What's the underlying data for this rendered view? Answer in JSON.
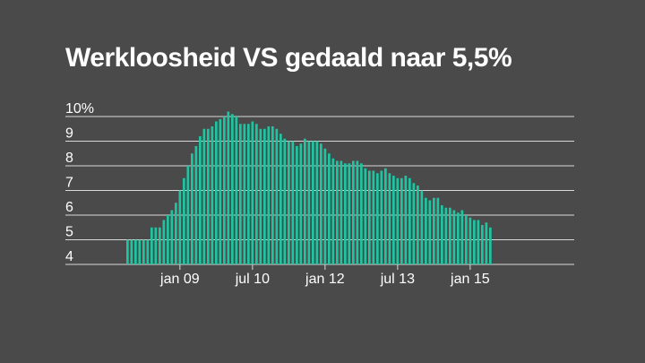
{
  "colors": {
    "background": "#4a4a4a",
    "bar": "#1fc4a0",
    "grid": "#d8d8d8",
    "text": "#ffffff"
  },
  "chart_data": {
    "type": "bar",
    "title": "Werkloosheid VS gedaald naar 5,5%",
    "ylim": [
      4,
      10
    ],
    "ytick_labels": [
      "10%",
      "9",
      "8",
      "7",
      "6",
      "5",
      "4"
    ],
    "ytick_values": [
      10,
      9,
      8,
      7,
      6,
      5,
      4
    ],
    "xtick_labels": [
      "jan 09",
      "jul 10",
      "jan 12",
      "jul 13",
      "jan 15"
    ],
    "xtick_indices": [
      13,
      31,
      49,
      67,
      85
    ],
    "grid": true,
    "series": [
      {
        "values": [
          5.0,
          5.0,
          5.0,
          5.0,
          5.0,
          5.0,
          5.5,
          5.5,
          5.5,
          5.8,
          6.0,
          6.2,
          6.5,
          7.0,
          7.5,
          8.0,
          8.5,
          8.8,
          9.2,
          9.5,
          9.5,
          9.6,
          9.8,
          9.9,
          10.0,
          10.2,
          10.1,
          10.0,
          9.7,
          9.7,
          9.7,
          9.8,
          9.7,
          9.5,
          9.5,
          9.6,
          9.6,
          9.5,
          9.3,
          9.1,
          9.0,
          9.0,
          8.8,
          8.9,
          9.1,
          9.0,
          9.0,
          9.0,
          8.9,
          8.7,
          8.5,
          8.3,
          8.2,
          8.2,
          8.1,
          8.1,
          8.2,
          8.2,
          8.1,
          7.9,
          7.8,
          7.8,
          7.7,
          7.8,
          7.9,
          7.7,
          7.6,
          7.5,
          7.5,
          7.6,
          7.5,
          7.3,
          7.2,
          7.0,
          6.7,
          6.6,
          6.7,
          6.7,
          6.4,
          6.3,
          6.3,
          6.2,
          6.1,
          6.2,
          6.0,
          5.9,
          5.8,
          5.8,
          5.6,
          5.7,
          5.5
        ]
      }
    ]
  }
}
